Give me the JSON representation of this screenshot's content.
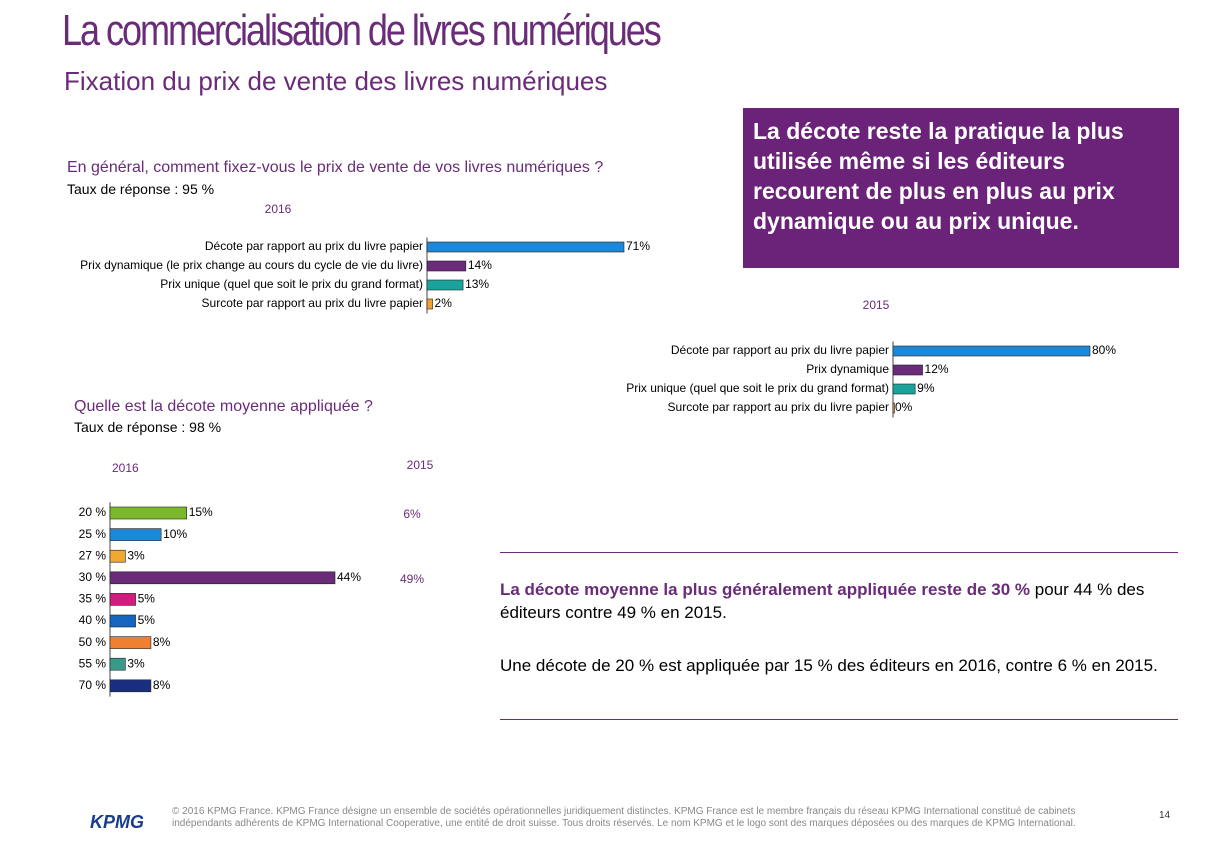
{
  "header": {
    "title": "La commercialisation de livres numériques",
    "subtitle": "Fixation du prix de vente des livres numériques"
  },
  "callout": "La décote reste la pratique la plus utilisée même si les éditeurs recourent de plus en plus au prix dynamique ou au prix unique.",
  "question_1": {
    "text": "En général, comment fixez-vous le prix de vente de vos livres numériques ?",
    "response_rate": "Taux de réponse : 95 %"
  },
  "question_2": {
    "text": "Quelle est la décote moyenne appliquée ?",
    "response_rate": "Taux de réponse : 98 %"
  },
  "chart_data": [
    {
      "type": "bar",
      "orientation": "horizontal",
      "title": "2016",
      "categories": [
        "Décote par rapport au prix du livre papier",
        "Prix dynamique (le prix change au cours du cycle de vie du livre)",
        "Prix unique (quel que soit le prix du grand format)",
        "Surcote par rapport au prix du livre papier"
      ],
      "values": [
        71,
        14,
        13,
        2
      ],
      "value_labels": [
        "71%",
        "14%",
        "13%",
        "2%"
      ],
      "colors": [
        "#1e88d6",
        "#6a2b79",
        "#1aa39a",
        "#f0a030"
      ]
    },
    {
      "type": "bar",
      "orientation": "horizontal",
      "title": "2015",
      "categories": [
        "Décote par rapport au prix du livre papier",
        "Prix dynamique",
        "Prix unique (quel que soit le prix du grand format)",
        "Surcote par rapport au prix du livre papier"
      ],
      "values": [
        80,
        12,
        9,
        0
      ],
      "value_labels": [
        "80%",
        "12%",
        "9%",
        "0%"
      ],
      "colors": [
        "#1e88d6",
        "#6a2b79",
        "#1aa39a",
        "#f0a030"
      ]
    },
    {
      "type": "bar",
      "orientation": "horizontal",
      "categories": [
        "20 %",
        "25 %",
        "27 %",
        "30 %",
        "35 %",
        "40 %",
        "50 %",
        "55 %",
        "70 %"
      ],
      "series": [
        {
          "name": "2016",
          "values": [
            15,
            10,
            3,
            44,
            5,
            5,
            8,
            3,
            8
          ],
          "value_labels": [
            "15%",
            "10%",
            "3%",
            "44%",
            "5%",
            "5%",
            "8%",
            "3%",
            "8%"
          ],
          "colors": [
            "#7ab929",
            "#1e88d6",
            "#f0a830",
            "#6a2b79",
            "#d6197e",
            "#1565c0",
            "#f08030",
            "#3a9a8a",
            "#1a2f80"
          ]
        },
        {
          "name": "2015",
          "values": [
            6,
            null,
            null,
            49,
            null,
            null,
            null,
            null,
            null
          ],
          "value_labels": [
            "6%",
            null,
            null,
            "49%",
            null,
            null,
            null,
            null,
            null
          ],
          "color": "#6a2b79"
        }
      ]
    }
  ],
  "summary": {
    "p1_bold": "La décote moyenne la plus généralement appliquée reste de 30 %",
    "p1_rest": " pour 44 % des éditeurs contre 49 % en 2015.",
    "p2": "Une décote de 20 % est appliquée par 15 % des éditeurs en 2016, contre 6 % en 2015."
  },
  "footer": {
    "logo": "KPMG",
    "legal": "© 2016 KPMG France. KPMG France désigne un ensemble de sociétés opérationnelles juridiquement distinctes. KPMG France est le membre français du réseau KPMG International constitué de cabinets indépendants adhérents de KPMG International Cooperative, une entité de droit suisse. Tous droits réservés. Le nom KPMG et le logo sont des marques déposées ou des marques de KPMG International.",
    "page": "14"
  }
}
